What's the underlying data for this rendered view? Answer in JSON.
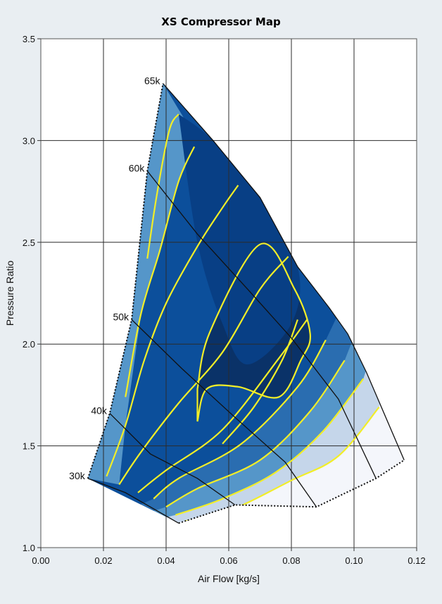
{
  "chart_data": {
    "type": "contour",
    "title": "XS Compressor Map",
    "xlabel": "Air Flow [kg/s]",
    "ylabel": "Pressure Ratio",
    "xlim": [
      0.0,
      0.12
    ],
    "ylim": [
      1.0,
      3.5
    ],
    "xticks": [
      "0.00",
      "0.02",
      "0.04",
      "0.06",
      "0.08",
      "0.10",
      "0.12"
    ],
    "yticks": [
      "1.0",
      "1.5",
      "2.0",
      "2.5",
      "3.0",
      "3.5"
    ],
    "grid": true,
    "speed_lines": [
      {
        "label": "30k",
        "points": [
          [
            0.015,
            1.34
          ],
          [
            0.027,
            1.27
          ],
          [
            0.044,
            1.12
          ]
        ]
      },
      {
        "label": "40k",
        "points": [
          [
            0.022,
            1.66
          ],
          [
            0.035,
            1.46
          ],
          [
            0.05,
            1.34
          ],
          [
            0.062,
            1.21
          ]
        ]
      },
      {
        "label": "50k",
        "points": [
          [
            0.029,
            2.12
          ],
          [
            0.045,
            1.88
          ],
          [
            0.062,
            1.64
          ],
          [
            0.078,
            1.42
          ],
          [
            0.088,
            1.2
          ]
        ]
      },
      {
        "label": "60k",
        "points": [
          [
            0.034,
            2.85
          ],
          [
            0.05,
            2.54
          ],
          [
            0.066,
            2.27
          ],
          [
            0.08,
            2.03
          ],
          [
            0.095,
            1.73
          ],
          [
            0.107,
            1.34
          ]
        ]
      },
      {
        "label": "65k",
        "points": [
          [
            0.039,
            3.28
          ],
          [
            0.055,
            3.0
          ],
          [
            0.07,
            2.72
          ],
          [
            0.082,
            2.38
          ],
          [
            0.092,
            2.18
          ],
          [
            0.098,
            2.05
          ],
          [
            0.104,
            1.86
          ],
          [
            0.116,
            1.43
          ]
        ]
      }
    ],
    "surge_line": [
      [
        0.015,
        1.34
      ],
      [
        0.022,
        1.66
      ],
      [
        0.029,
        2.12
      ],
      [
        0.034,
        2.85
      ],
      [
        0.039,
        3.28
      ]
    ],
    "choke_line": [
      [
        0.044,
        1.12
      ],
      [
        0.062,
        1.21
      ],
      [
        0.088,
        1.2
      ],
      [
        0.107,
        1.34
      ],
      [
        0.116,
        1.43
      ]
    ],
    "efficiency_contours": [
      {
        "points": [
          [
            0.046,
            1.13
          ],
          [
            0.06,
            1.18
          ],
          [
            0.08,
            1.33
          ],
          [
            0.095,
            1.45
          ],
          [
            0.108,
            1.69
          ]
        ]
      },
      {
        "points": [
          [
            0.043,
            1.16
          ],
          [
            0.058,
            1.24
          ],
          [
            0.075,
            1.37
          ],
          [
            0.09,
            1.57
          ],
          [
            0.103,
            1.83
          ]
        ]
      },
      {
        "points": [
          [
            0.04,
            1.2
          ],
          [
            0.05,
            1.29
          ],
          [
            0.07,
            1.43
          ],
          [
            0.086,
            1.67
          ],
          [
            0.097,
            1.92
          ]
        ]
      },
      {
        "points": [
          [
            0.036,
            1.24
          ],
          [
            0.044,
            1.34
          ],
          [
            0.064,
            1.51
          ],
          [
            0.082,
            1.79
          ],
          [
            0.091,
            2.02
          ]
        ]
      },
      {
        "points": [
          [
            0.031,
            1.27
          ],
          [
            0.04,
            1.38
          ],
          [
            0.058,
            1.58
          ],
          [
            0.076,
            1.93
          ],
          [
            0.085,
            2.12
          ]
        ]
      },
      {
        "points": [
          [
            0.025,
            1.31
          ],
          [
            0.032,
            1.47
          ],
          [
            0.044,
            1.71
          ],
          [
            0.058,
            1.96
          ],
          [
            0.07,
            2.27
          ],
          [
            0.079,
            2.43
          ]
        ]
      },
      {
        "points": [
          [
            0.021,
            1.35
          ],
          [
            0.027,
            1.6
          ],
          [
            0.033,
            1.92
          ],
          [
            0.04,
            2.2
          ],
          [
            0.05,
            2.48
          ],
          [
            0.058,
            2.67
          ],
          [
            0.063,
            2.78
          ]
        ]
      },
      {
        "points": [
          [
            0.027,
            1.74
          ],
          [
            0.032,
            2.15
          ],
          [
            0.038,
            2.46
          ],
          [
            0.044,
            2.8
          ],
          [
            0.049,
            2.97
          ]
        ]
      },
      {
        "points": [
          [
            0.034,
            2.42
          ],
          [
            0.037,
            2.73
          ],
          [
            0.041,
            3.05
          ],
          [
            0.044,
            3.13
          ]
        ]
      },
      {
        "points": [
          [
            0.058,
            1.51
          ],
          [
            0.068,
            1.69
          ],
          [
            0.077,
            1.92
          ],
          [
            0.082,
            2.12
          ]
        ]
      },
      {
        "points": [
          [
            0.05,
            1.62
          ],
          [
            0.053,
            1.78
          ],
          [
            0.063,
            1.79
          ],
          [
            0.076,
            1.74
          ],
          [
            0.083,
            1.92
          ],
          [
            0.086,
            2.05
          ],
          [
            0.081,
            2.27
          ],
          [
            0.07,
            2.49
          ],
          [
            0.054,
            2.06
          ],
          [
            0.05,
            1.78
          ]
        ]
      }
    ],
    "colors": {
      "background": "#e9eef2",
      "plot_background": "#ffffff",
      "grid": "#2b2b2b",
      "contour_line": "#f2ee27",
      "speed_line": "#111111",
      "band_0": "#f4f6fb",
      "band_1": "#c5d6ea",
      "band_2": "#5596c9",
      "band_3": "#2a6db0",
      "band_4": "#0c4f9b",
      "band_5": "#083f85",
      "band_6": "#0a3268"
    }
  }
}
